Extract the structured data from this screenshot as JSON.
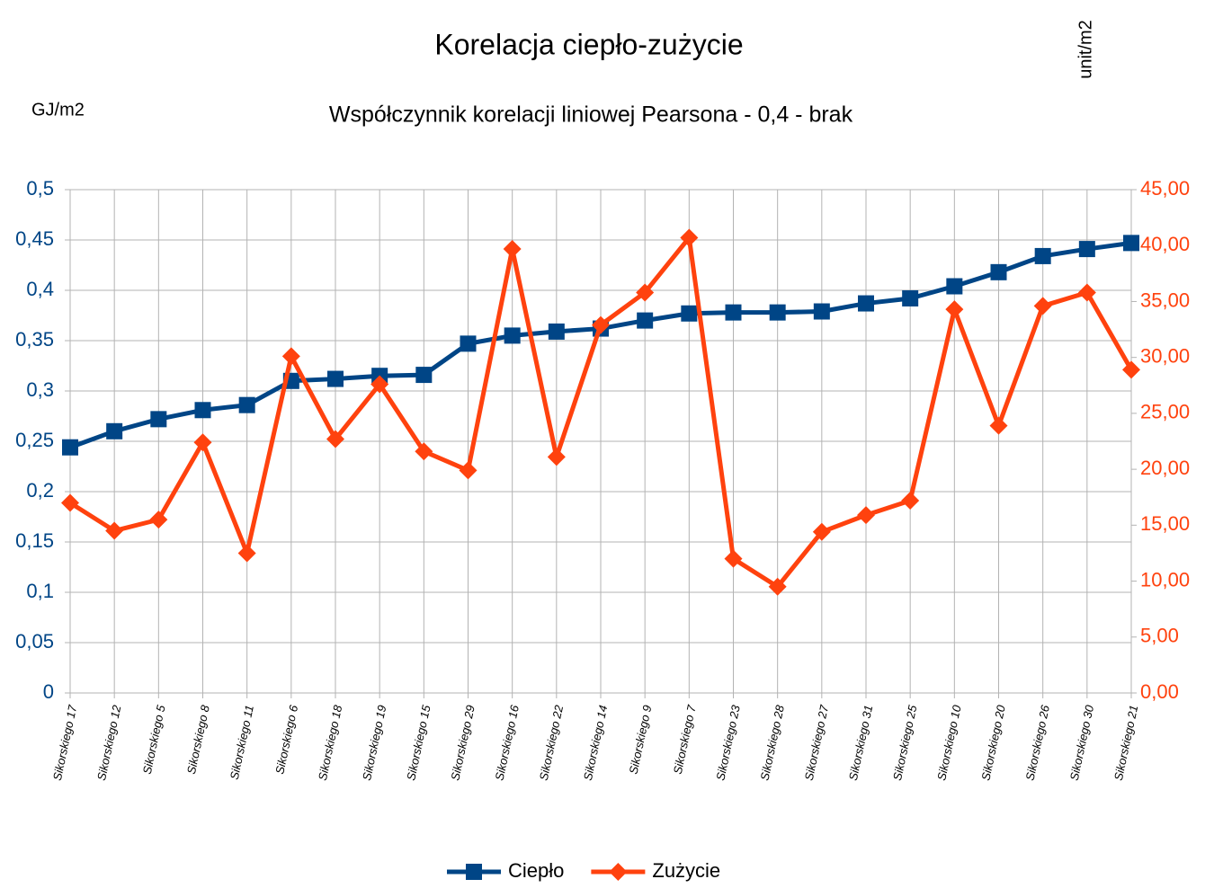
{
  "chart_data": {
    "type": "line",
    "title": "Korelacja ciepło-zużycie",
    "subtitle": "Współczynnik korelacji liniowej Pearsona - 0,4 - brak",
    "y_label": "GJ/m2",
    "y2_label": "unit/m2",
    "categories": [
      "Sikorskiego 17",
      "Sikorskiego 12",
      "Sikorskiego 5",
      "Sikorskiego 8",
      "Sikorskiego 11",
      "Sikorskiego 6",
      "Sikorskiego 18",
      "Sikorskiego 19",
      "Sikorskiego 15",
      "Sikorskiego 29",
      "Sikorskiego 16",
      "Sikorskiego 22",
      "Sikorskiego 14",
      "Sikorskiego 9",
      "Sikorskiego 7",
      "Sikorskiego 23",
      "Sikorskiego 28",
      "Sikorskiego 27",
      "Sikorskiego 31",
      "Sikorskiego 25",
      "Sikorskiego 10",
      "Sikorskiego 20",
      "Sikorskiego 26",
      "Sikorskiego 30",
      "Sikorskiego 21"
    ],
    "series": [
      {
        "name": "Ciepło",
        "color": "#004586",
        "marker": "square",
        "values": [
          0.244,
          0.26,
          0.272,
          0.281,
          0.286,
          0.31,
          0.312,
          0.315,
          0.316,
          0.347,
          0.355,
          0.359,
          0.362,
          0.37,
          0.377,
          0.378,
          0.378,
          0.379,
          0.387,
          0.392,
          0.404,
          0.418,
          0.434,
          0.441,
          0.447
        ]
      },
      {
        "name": "Zużycie",
        "color": "#ff420e",
        "marker": "diamond",
        "axis": "y2",
        "values": [
          17.0,
          14.5,
          15.5,
          22.4,
          12.5,
          30.1,
          22.7,
          27.6,
          21.6,
          19.9,
          39.7,
          21.1,
          32.9,
          35.8,
          40.7,
          12.0,
          9.5,
          14.4,
          15.9,
          17.2,
          34.3,
          23.9,
          34.6,
          35.8,
          28.9
        ]
      }
    ],
    "ylim": [
      0,
      0.5
    ],
    "yticks": [
      0,
      {
        "value": 0.05,
        "label": "0,05"
      },
      {
        "value": 0.1,
        "label": "0,1"
      },
      {
        "value": 0.15,
        "label": "0,15"
      },
      {
        "value": 0.2,
        "label": "0,2"
      },
      {
        "value": 0.25,
        "label": "0,25"
      },
      {
        "value": 0.3,
        "label": "0,3"
      },
      {
        "value": 0.35,
        "label": "0,35"
      },
      {
        "value": 0.4,
        "label": "0,4"
      },
      {
        "value": 0.45,
        "label": "0,45"
      },
      {
        "value": 0.5,
        "label": "0,5"
      }
    ],
    "y2lim": [
      0,
      45
    ],
    "y2ticks": [
      {
        "value": 0,
        "label": "0,00"
      },
      {
        "value": 5,
        "label": "5,00"
      },
      {
        "value": 10,
        "label": "10,00"
      },
      {
        "value": 15,
        "label": "15,00"
      },
      {
        "value": 20,
        "label": "20,00"
      },
      {
        "value": 25,
        "label": "25,00"
      },
      {
        "value": 30,
        "label": "30,00"
      },
      {
        "value": 35,
        "label": "35,00"
      },
      {
        "value": 40,
        "label": "40,00"
      },
      {
        "value": 45,
        "label": "45,00"
      }
    ],
    "grid": true,
    "legend": "bottom"
  }
}
